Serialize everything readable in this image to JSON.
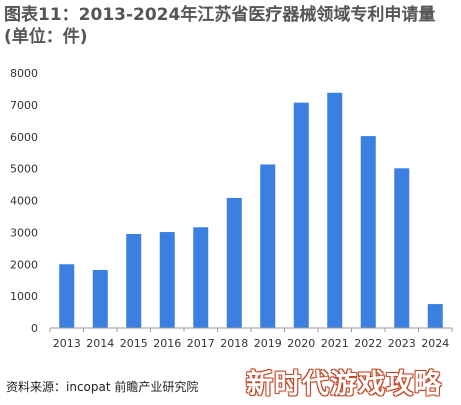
{
  "title": "图表11：2013-2024年江苏省医疗器械领域专利申请量(单位：件)",
  "source": "资料来源：incopat 前瞻产业研究院",
  "overlay_text": "新时代游戏攻略",
  "colors": {
    "bar": "#3b7fe0",
    "axis": "#999999",
    "tick": "#333333"
  },
  "chart_data": {
    "type": "bar",
    "title": "图表11：2013-2024年江苏省医疗器械领域专利申请量(单位：件)",
    "categories": [
      "2013",
      "2014",
      "2015",
      "2016",
      "2017",
      "2018",
      "2019",
      "2020",
      "2021",
      "2022",
      "2023",
      "2024"
    ],
    "values": [
      2000,
      1820,
      2950,
      3010,
      3160,
      4080,
      5130,
      7070,
      7380,
      6020,
      5010,
      750
    ],
    "ylim": [
      0,
      8000
    ],
    "yticks": [
      0,
      1000,
      2000,
      3000,
      4000,
      5000,
      6000,
      7000,
      8000
    ],
    "xlabel": "",
    "ylabel": "",
    "grid": false
  }
}
